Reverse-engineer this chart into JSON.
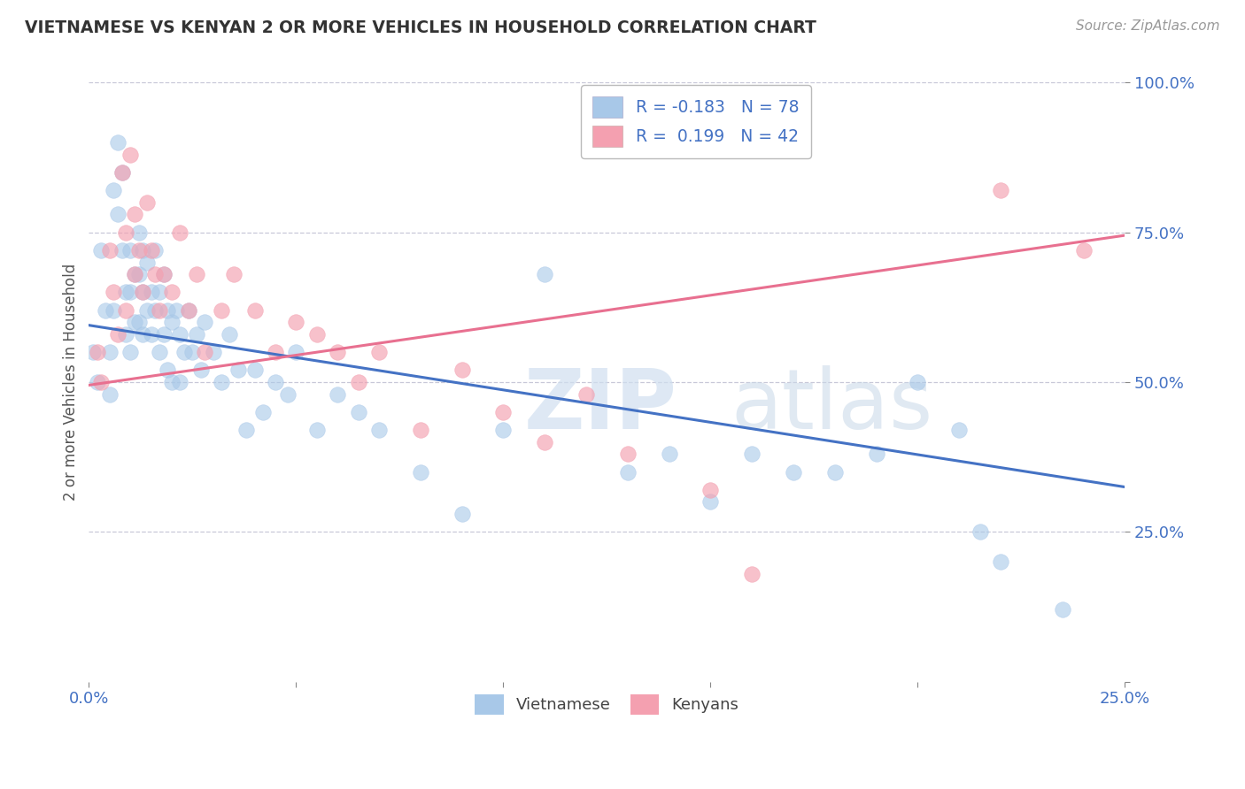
{
  "title": "VIETNAMESE VS KENYAN 2 OR MORE VEHICLES IN HOUSEHOLD CORRELATION CHART",
  "source_text": "Source: ZipAtlas.com",
  "ylabel": "2 or more Vehicles in Household",
  "x_min": 0.0,
  "x_max": 0.25,
  "y_min": 0.0,
  "y_max": 1.0,
  "x_ticks": [
    0.0,
    0.05,
    0.1,
    0.15,
    0.2,
    0.25
  ],
  "x_tick_labels": [
    "0.0%",
    "",
    "",
    "",
    "",
    "25.0%"
  ],
  "y_ticks_right": [
    0.0,
    0.25,
    0.5,
    0.75,
    1.0
  ],
  "y_tick_labels_right": [
    "",
    "25.0%",
    "50.0%",
    "75.0%",
    "100.0%"
  ],
  "R_vietnamese": -0.183,
  "N_vietnamese": 78,
  "R_kenyan": 0.199,
  "N_kenyan": 42,
  "color_vietnamese": "#a8c8e8",
  "color_kenyan": "#f4a0b0",
  "color_line_vietnamese": "#4472c4",
  "color_line_kenyan": "#e87090",
  "background_color": "#ffffff",
  "grid_color": "#c8c8d8",
  "watermark_zip": "ZIP",
  "watermark_atlas": "atlas",
  "legend_labels": [
    "Vietnamese",
    "Kenyans"
  ],
  "viet_line_x0": 0.0,
  "viet_line_y0": 0.595,
  "viet_line_x1": 0.25,
  "viet_line_y1": 0.325,
  "ken_line_x0": 0.0,
  "ken_line_y0": 0.495,
  "ken_line_x1": 0.25,
  "ken_line_y1": 0.745,
  "vietnamese_x": [
    0.001,
    0.002,
    0.003,
    0.004,
    0.005,
    0.005,
    0.006,
    0.006,
    0.007,
    0.007,
    0.008,
    0.008,
    0.009,
    0.009,
    0.01,
    0.01,
    0.01,
    0.011,
    0.011,
    0.012,
    0.012,
    0.012,
    0.013,
    0.013,
    0.013,
    0.014,
    0.014,
    0.015,
    0.015,
    0.016,
    0.016,
    0.017,
    0.017,
    0.018,
    0.018,
    0.019,
    0.019,
    0.02,
    0.02,
    0.021,
    0.022,
    0.022,
    0.023,
    0.024,
    0.025,
    0.026,
    0.027,
    0.028,
    0.03,
    0.032,
    0.034,
    0.036,
    0.038,
    0.04,
    0.042,
    0.045,
    0.048,
    0.05,
    0.055,
    0.06,
    0.065,
    0.07,
    0.08,
    0.09,
    0.1,
    0.11,
    0.13,
    0.14,
    0.15,
    0.16,
    0.17,
    0.18,
    0.19,
    0.2,
    0.21,
    0.215,
    0.22,
    0.235
  ],
  "vietnamese_y": [
    0.55,
    0.5,
    0.72,
    0.62,
    0.55,
    0.48,
    0.82,
    0.62,
    0.9,
    0.78,
    0.85,
    0.72,
    0.65,
    0.58,
    0.72,
    0.65,
    0.55,
    0.68,
    0.6,
    0.75,
    0.68,
    0.6,
    0.72,
    0.65,
    0.58,
    0.7,
    0.62,
    0.65,
    0.58,
    0.72,
    0.62,
    0.65,
    0.55,
    0.68,
    0.58,
    0.62,
    0.52,
    0.6,
    0.5,
    0.62,
    0.58,
    0.5,
    0.55,
    0.62,
    0.55,
    0.58,
    0.52,
    0.6,
    0.55,
    0.5,
    0.58,
    0.52,
    0.42,
    0.52,
    0.45,
    0.5,
    0.48,
    0.55,
    0.42,
    0.48,
    0.45,
    0.42,
    0.35,
    0.28,
    0.42,
    0.68,
    0.35,
    0.38,
    0.3,
    0.38,
    0.35,
    0.35,
    0.38,
    0.5,
    0.42,
    0.25,
    0.2,
    0.12
  ],
  "kenyan_x": [
    0.002,
    0.003,
    0.005,
    0.006,
    0.007,
    0.008,
    0.009,
    0.009,
    0.01,
    0.011,
    0.011,
    0.012,
    0.013,
    0.014,
    0.015,
    0.016,
    0.017,
    0.018,
    0.02,
    0.022,
    0.024,
    0.026,
    0.028,
    0.032,
    0.035,
    0.04,
    0.045,
    0.05,
    0.055,
    0.06,
    0.065,
    0.07,
    0.08,
    0.09,
    0.1,
    0.11,
    0.12,
    0.13,
    0.15,
    0.16,
    0.22,
    0.24
  ],
  "kenyan_y": [
    0.55,
    0.5,
    0.72,
    0.65,
    0.58,
    0.85,
    0.75,
    0.62,
    0.88,
    0.78,
    0.68,
    0.72,
    0.65,
    0.8,
    0.72,
    0.68,
    0.62,
    0.68,
    0.65,
    0.75,
    0.62,
    0.68,
    0.55,
    0.62,
    0.68,
    0.62,
    0.55,
    0.6,
    0.58,
    0.55,
    0.5,
    0.55,
    0.42,
    0.52,
    0.45,
    0.4,
    0.48,
    0.38,
    0.32,
    0.18,
    0.82,
    0.72
  ]
}
